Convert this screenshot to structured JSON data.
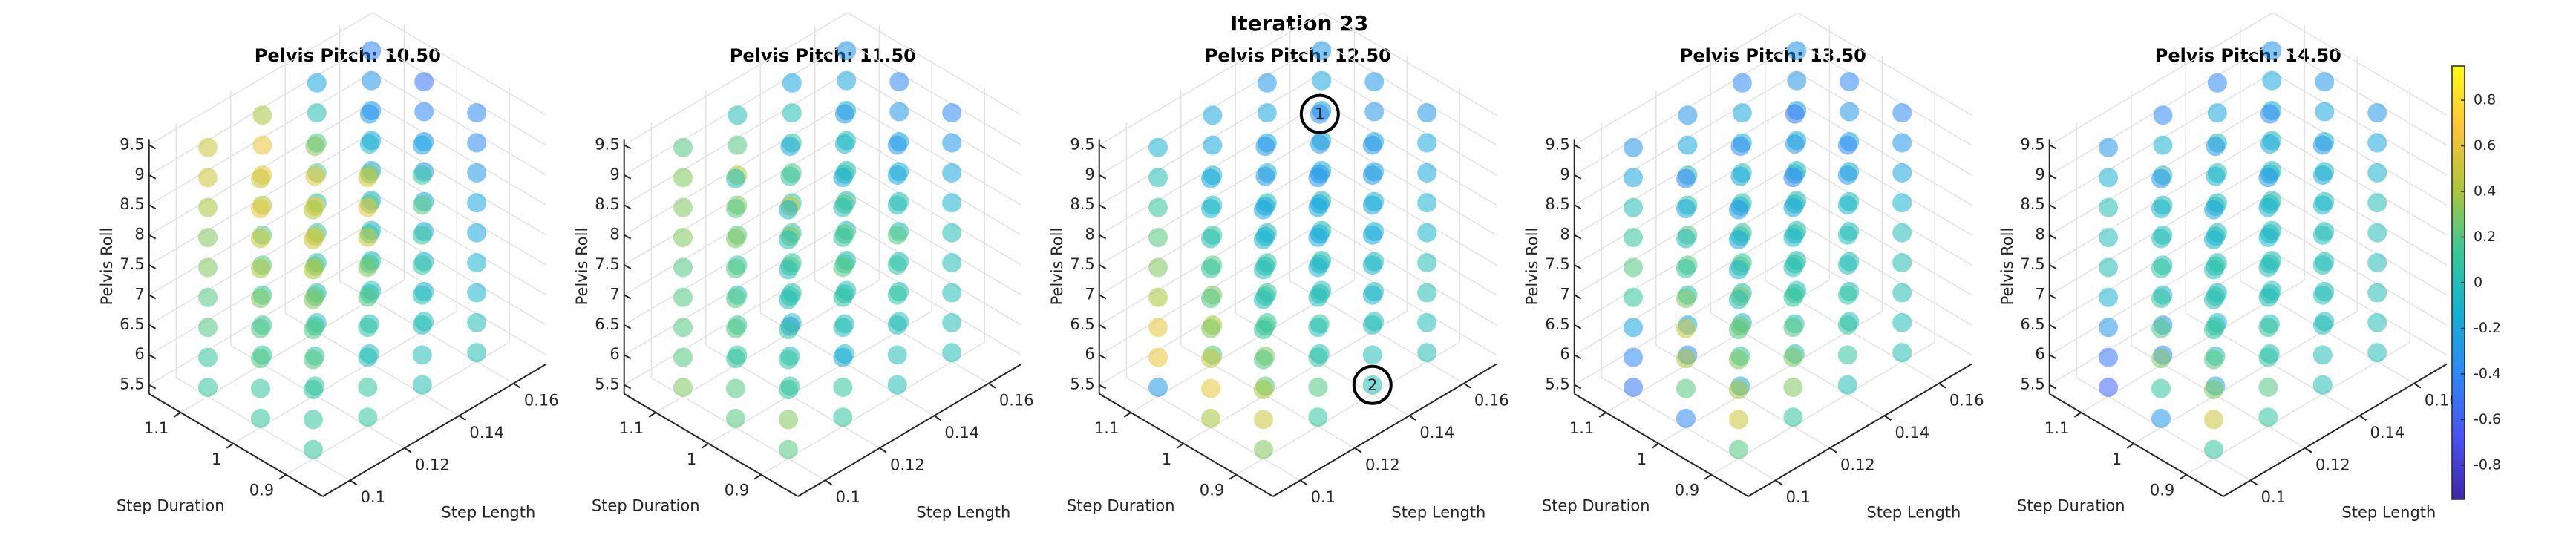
{
  "chart_data": {
    "type": "scatter3d",
    "title": "Iteration 23",
    "xlabel": "Step Length",
    "ylabel": "Step Duration",
    "zlabel": "Pelvis Roll",
    "xlim": [
      0.09,
      0.172
    ],
    "ylim": [
      0.83,
      1.16
    ],
    "zlim": [
      5.35,
      9.6
    ],
    "xticks": [
      0.1,
      0.12,
      0.14,
      0.16
    ],
    "yticks": [
      0.9,
      1,
      1.1
    ],
    "zticks": [
      5.5,
      6,
      6.5,
      7,
      7.5,
      8,
      8.5,
      9,
      9.5
    ],
    "colormap": "parula",
    "clim": [
      -0.95,
      0.95
    ],
    "cticks": [
      -0.8,
      -0.6,
      -0.4,
      -0.2,
      0,
      0.2,
      0.4,
      0.6,
      0.8
    ],
    "grid": true,
    "panels": [
      {
        "title": "Pelvis Pitch: 10.50",
        "values": [
          [
            [
              0.1,
              0.1,
              0.1,
              0.2,
              0.2,
              0.3,
              0.4,
              0.5,
              0.4
            ],
            [
              0.1,
              0.1,
              0.0,
              0.1,
              0.2,
              0.3,
              0.5,
              0.6,
              0.5
            ],
            [
              0,
              0,
              0,
              0,
              0.1,
              0.1,
              0.2,
              0.1,
              -0.2
            ],
            [
              0,
              0,
              -0.1,
              -0.1,
              -0.2,
              -0.2,
              -0.3,
              -0.4,
              -0.4
            ]
          ],
          [
            [
              0.1,
              0.1,
              0.2,
              0.2,
              0.3,
              0.4,
              0.5,
              0.6,
              0.5
            ],
            [
              0.1,
              0.1,
              0.1,
              0.2,
              0.3,
              0.5,
              0.7,
              0.6,
              0.3
            ],
            [
              0,
              0,
              0,
              0.1,
              0.1,
              0.2,
              0.3,
              -0.1,
              -0.3
            ],
            [
              0,
              -0.1,
              -0.1,
              -0.2,
              -0.2,
              -0.3,
              -0.3,
              -0.4,
              -0.5
            ]
          ],
          [
            [
              0.1,
              0.1,
              0.2,
              0.2,
              0.3,
              0.3,
              0.4,
              0.5,
              0.5
            ],
            [
              0.1,
              0.1,
              0.1,
              0.2,
              0.2,
              0.4,
              0.6,
              0.6,
              0.4
            ],
            [
              0,
              0,
              0,
              0.1,
              0.1,
              0.2,
              0.2,
              0,
              -0.2
            ],
            [
              0,
              0,
              -0.1,
              -0.1,
              -0.2,
              -0.2,
              -0.3,
              -0.3,
              -0.4
            ]
          ]
        ]
      },
      {
        "title": "Pelvis Pitch: 11.50",
        "values": [
          [
            [
              0.2,
              0.3,
              0.1,
              0.1,
              0.1,
              0,
              0,
              0,
              -0.1
            ],
            [
              0.1,
              0.1,
              -0.2,
              0,
              0.1,
              0.2,
              0.1,
              0,
              -0.2
            ],
            [
              0,
              0,
              0,
              0.1,
              0.1,
              0.2,
              0,
              -0.2,
              -0.3
            ],
            [
              0,
              0,
              0,
              0,
              0,
              -0.1,
              -0.2,
              -0.3,
              -0.4
            ]
          ],
          [
            [
              0.2,
              0.2,
              0.1,
              0.2,
              0.2,
              0.2,
              0.3,
              0.2,
              0
            ],
            [
              0.1,
              0,
              -0.3,
              0.1,
              0.2,
              0.3,
              0.5,
              0.1,
              -0.2
            ],
            [
              0,
              0,
              0,
              0.1,
              0.2,
              0.2,
              0.1,
              -0.1,
              -0.3
            ],
            [
              0,
              0,
              0,
              0,
              0,
              -0.1,
              -0.2,
              -0.3,
              -0.4
            ]
          ],
          [
            [
              0.3,
              0.2,
              0.2,
              0.2,
              0.2,
              0.3,
              0.3,
              0.3,
              0.2
            ],
            [
              0.1,
              0.1,
              0,
              0.1,
              0.2,
              0.3,
              0.4,
              0.2,
              0
            ],
            [
              0,
              0,
              0.1,
              0.1,
              0.1,
              0.2,
              0.1,
              0,
              -0.2
            ],
            [
              0,
              0,
              0,
              0,
              0,
              0,
              -0.1,
              -0.2,
              -0.3
            ]
          ]
        ]
      },
      {
        "title": "Pelvis Pitch: 12.50",
        "values": [
          [
            [
              0.3,
              0.5,
              0.4,
              0.2,
              0.1,
              0,
              0,
              -0.1,
              -0.2
            ],
            [
              0.1,
              0.2,
              0.1,
              0,
              0,
              -0.1,
              -0.2,
              -0.2,
              -0.3
            ],
            [
              0,
              0,
              0,
              -0.1,
              -0.1,
              -0.2,
              -0.2,
              -0.3,
              -0.3
            ],
            [
              0,
              0,
              0,
              0,
              -0.1,
              -0.1,
              -0.2,
              -0.2,
              -0.3
            ]
          ],
          [
            [
              0.4,
              0.6,
              0.5,
              0.3,
              0.2,
              0.1,
              0,
              -0.1,
              -0.2
            ],
            [
              0.2,
              0.3,
              0.2,
              0.1,
              0,
              -0.1,
              -0.2,
              -0.3,
              -0.3
            ],
            [
              0,
              0.1,
              0,
              0,
              -0.1,
              -0.2,
              -0.3,
              -0.3,
              -0.4
            ],
            [
              0,
              0,
              0,
              -0.1,
              -0.1,
              -0.2,
              -0.2,
              -0.3,
              -0.3
            ]
          ],
          [
            [
              -0.3,
              0.6,
              0.6,
              0.4,
              0.3,
              0.2,
              0.1,
              0,
              -0.1
            ],
            [
              0.2,
              0.4,
              0.3,
              0.2,
              0.1,
              0,
              -0.1,
              -0.2,
              -0.2
            ],
            [
              0.1,
              0.1,
              0.1,
              0,
              0,
              -0.1,
              -0.2,
              -0.2,
              -0.3
            ],
            [
              0,
              0,
              0,
              0,
              -0.1,
              -0.1,
              -0.2,
              -0.2,
              -0.3
            ]
          ]
        ]
      },
      {
        "title": "Pelvis Pitch: 13.50",
        "values": [
          [
            [
              0.2,
              0.5,
              0.4,
              0.3,
              0.2,
              0,
              -0.1,
              -0.2,
              -0.3
            ],
            [
              0.1,
              0.3,
              0.3,
              0.2,
              0.1,
              0,
              -0.1,
              -0.2,
              -0.4
            ],
            [
              0,
              0.1,
              0.1,
              0.1,
              0,
              0,
              -0.1,
              -0.3,
              -0.4
            ],
            [
              0,
              0,
              0,
              0,
              0,
              -0.1,
              -0.2,
              -0.3,
              -0.4
            ]
          ],
          [
            [
              -0.4,
              0.2,
              0.4,
              0.5,
              0.3,
              0.1,
              0,
              -0.2,
              -0.4
            ],
            [
              -0.2,
              0.1,
              0.3,
              0.3,
              0.2,
              0.1,
              -0.1,
              -0.2,
              -0.4
            ],
            [
              0,
              0,
              0.1,
              0.1,
              0.1,
              0,
              -0.1,
              -0.3,
              -0.5
            ],
            [
              0,
              0,
              0,
              0,
              0,
              -0.1,
              -0.2,
              -0.3,
              -0.4
            ]
          ],
          [
            [
              -0.5,
              -0.4,
              -0.2,
              0.1,
              0.2,
              0.1,
              0,
              -0.2,
              -0.3
            ],
            [
              -0.4,
              -0.2,
              0,
              0.2,
              0.2,
              0.1,
              0,
              -0.2,
              -0.3
            ],
            [
              -0.1,
              0,
              0.1,
              0.1,
              0.1,
              0,
              -0.1,
              -0.2,
              -0.4
            ],
            [
              0,
              0,
              0,
              0,
              0,
              -0.1,
              -0.2,
              -0.3,
              -0.3
            ]
          ]
        ]
      },
      {
        "title": "Pelvis Pitch: 14.50",
        "values": [
          [
            [
              0.1,
              0.5,
              0.3,
              0.2,
              0.1,
              0,
              0,
              -0.1,
              -0.2
            ],
            [
              0.1,
              0.2,
              0.1,
              0.1,
              0,
              0,
              -0.1,
              -0.1,
              -0.3
            ],
            [
              0,
              0,
              0,
              0,
              0,
              0,
              -0.1,
              -0.2,
              -0.3
            ],
            [
              0,
              0,
              0,
              0,
              0,
              0,
              -0.1,
              -0.2,
              -0.3
            ]
          ],
          [
            [
              -0.3,
              0.1,
              0.3,
              0.2,
              0.1,
              0.1,
              0,
              -0.1,
              -0.3
            ],
            [
              -0.2,
              0,
              0.1,
              0.1,
              0.1,
              0,
              0,
              -0.1,
              -0.3
            ],
            [
              0,
              0,
              0,
              0,
              0,
              0,
              -0.1,
              -0.2,
              -0.4
            ],
            [
              0,
              0,
              0,
              0,
              0,
              0,
              -0.1,
              -0.2,
              -0.3
            ]
          ],
          [
            [
              -0.6,
              -0.5,
              -0.3,
              -0.1,
              0,
              0,
              0,
              -0.1,
              -0.3
            ],
            [
              -0.4,
              -0.3,
              -0.1,
              0,
              0,
              0,
              0,
              -0.1,
              -0.4
            ],
            [
              -0.1,
              -0.1,
              0,
              0,
              0,
              0,
              0,
              -0.2,
              -0.4
            ],
            [
              0,
              0,
              0,
              0,
              0,
              0,
              -0.1,
              -0.2,
              -0.3
            ]
          ]
        ]
      }
    ],
    "annotations": [
      {
        "panel": 2,
        "text": "1",
        "x": 0.14,
        "y": 1,
        "z": 9.5
      },
      {
        "panel": 2,
        "text": "2",
        "x": 0.14,
        "y": 0.9,
        "z": 5.5
      }
    ]
  }
}
